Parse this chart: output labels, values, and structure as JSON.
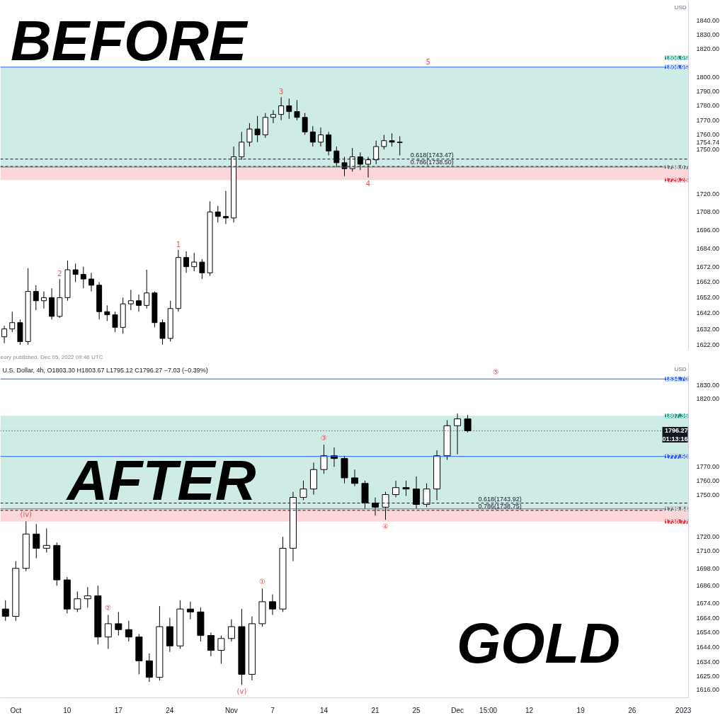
{
  "chart_data": [
    {
      "type": "candlestick",
      "title": "BEFORE",
      "ylabel": "USD",
      "color": "#000000",
      "log": true,
      "tick_labels": "y",
      "categories": [
        null,
        null,
        null,
        null,
        null,
        null,
        null,
        null,
        null,
        null,
        null,
        null,
        null,
        null,
        null,
        null,
        null,
        null,
        null,
        null,
        null,
        null,
        null,
        null,
        null,
        null,
        null,
        null,
        null,
        null,
        null,
        null,
        null,
        null,
        null,
        null,
        null,
        null,
        null,
        null,
        null,
        null,
        null,
        null,
        null,
        null,
        null,
        null,
        null,
        null,
        null,
        null,
        null,
        null,
        null,
        null,
        null,
        null,
        null,
        null,
        null,
        null,
        null,
        null,
        null,
        null,
        null,
        null,
        null,
        null,
        null,
        null,
        null,
        null,
        null,
        null,
        null,
        null,
        null,
        null,
        null,
        null,
        null,
        null,
        null,
        null,
        null
      ],
      "ohlc": [
        [
          1627,
          1634,
          1623,
          1632
        ],
        [
          1632,
          1643,
          1630,
          1636
        ],
        [
          1636,
          1638,
          1622,
          1624
        ],
        [
          1624,
          1671,
          1622,
          1656
        ],
        [
          1656,
          1660,
          1644,
          1650
        ],
        [
          1650,
          1656,
          1645,
          1652
        ],
        [
          1652,
          1658,
          1638,
          1640
        ],
        [
          1640,
          1664,
          1639,
          1652
        ],
        [
          1652,
          1676,
          1650,
          1670
        ],
        [
          1670,
          1674,
          1662,
          1667
        ],
        [
          1667,
          1672,
          1658,
          1664
        ],
        [
          1664,
          1668,
          1656,
          1660
        ],
        [
          1660,
          1662,
          1638,
          1643
        ],
        [
          1643,
          1647,
          1637,
          1641
        ],
        [
          1641,
          1643,
          1630,
          1633
        ],
        [
          1633,
          1652,
          1629,
          1648
        ],
        [
          1648,
          1657,
          1644,
          1650
        ],
        [
          1650,
          1654,
          1643,
          1647
        ],
        [
          1647,
          1670,
          1645,
          1655
        ],
        [
          1655,
          1656,
          1633,
          1636
        ],
        [
          1636,
          1638,
          1622,
          1626
        ],
        [
          1626,
          1650,
          1624,
          1645
        ],
        [
          1645,
          1683,
          1643,
          1678
        ],
        [
          1678,
          1682,
          1668,
          1672
        ],
        [
          1672,
          1681,
          1669,
          1675
        ],
        [
          1675,
          1677,
          1664,
          1668
        ],
        [
          1668,
          1715,
          1666,
          1708
        ],
        [
          1708,
          1712,
          1701,
          1705
        ],
        [
          1705,
          1722,
          1700,
          1704
        ],
        [
          1704,
          1752,
          1701,
          1745
        ],
        [
          1745,
          1762,
          1743,
          1755
        ],
        [
          1755,
          1768,
          1752,
          1764
        ],
        [
          1764,
          1773,
          1755,
          1760
        ],
        [
          1760,
          1775,
          1758,
          1772
        ],
        [
          1772,
          1777,
          1768,
          1774
        ],
        [
          1774,
          1786,
          1770,
          1780
        ],
        [
          1780,
          1785,
          1771,
          1776
        ],
        [
          1776,
          1784,
          1770,
          1772
        ],
        [
          1772,
          1775,
          1760,
          1762
        ],
        [
          1762,
          1766,
          1752,
          1755
        ],
        [
          1755,
          1765,
          1752,
          1760
        ],
        [
          1760,
          1762,
          1746,
          1749
        ],
        [
          1749,
          1752,
          1738,
          1741
        ],
        [
          1741,
          1745,
          1732,
          1737
        ],
        [
          1737,
          1751,
          1735,
          1745
        ],
        [
          1745,
          1748,
          1736,
          1740
        ],
        [
          1740,
          1745,
          1731,
          1743
        ],
        [
          1743,
          1756,
          1740,
          1752
        ],
        [
          1752,
          1760,
          1750,
          1756
        ],
        [
          1756,
          1761,
          1752,
          1755
        ],
        [
          1755,
          1759,
          1746,
          1754.74
        ],
        null,
        null,
        null,
        null,
        null,
        null,
        null,
        null,
        null,
        null,
        null,
        null,
        null,
        null,
        null,
        null,
        null,
        null,
        null,
        null,
        null,
        null,
        null,
        null,
        null,
        null,
        null,
        null,
        null,
        null,
        null,
        null,
        null,
        null,
        null,
        null
      ],
      "ylim": [
        1619.5,
        1853.5
      ],
      "yticks": [
        {
          "value": 1840,
          "label": "1840.00"
        },
        {
          "value": 1830,
          "label": "1830.00"
        },
        {
          "value": 1820,
          "label": "1820.00"
        },
        {
          "value": 1800,
          "label": "1800.00"
        },
        {
          "value": 1790,
          "label": "1790.00"
        },
        {
          "value": 1780,
          "label": "1780.00"
        },
        {
          "value": 1770,
          "label": "1770.00"
        },
        {
          "value": 1760,
          "label": "1760.00"
        },
        {
          "value": 1754.74,
          "label": "1754.74"
        },
        {
          "value": 1750,
          "label": "1750.00"
        },
        {
          "value": 1720,
          "label": "1720.00"
        },
        {
          "value": 1708,
          "label": "1708.00"
        },
        {
          "value": 1696,
          "label": "1696.00"
        },
        {
          "value": 1684,
          "label": "1684.00"
        },
        {
          "value": 1672,
          "label": "1672.00"
        },
        {
          "value": 1662,
          "label": "1662.00"
        },
        {
          "value": 1652,
          "label": "1652.00"
        },
        {
          "value": 1642,
          "label": "1642.00"
        },
        {
          "value": 1632,
          "label": "1632.00"
        },
        {
          "value": 1622,
          "label": "1622.00"
        }
      ],
      "ref_lines": [
        {
          "axis": "y",
          "value": 1806.95,
          "label": "1806.95",
          "color": "#2962ff"
        },
        {
          "axis": "y",
          "value": 1738.07,
          "label": "1738.07",
          "color": "#787b86"
        },
        {
          "axis": "y",
          "value": 1743.47,
          "label": "0.618(1743.47)",
          "color": "#131722",
          "line_style": "dashed"
        },
        {
          "axis": "y",
          "value": 1738.5,
          "label": "0.786(1738.50)",
          "color": "#131722",
          "line_style": "dashed"
        }
      ],
      "bands": [
        {
          "axis": "y",
          "from": 1738.07,
          "to": 1806.95,
          "label": "1806.95",
          "color": "#089981"
        },
        {
          "axis": "y",
          "from": 1738.07,
          "to": 1729.28,
          "label": "1729.28",
          "color": "#f23645"
        }
      ],
      "annotations": [
        "eory published, Dec 05, 2022 09:46 UTC",
        {
          "text": "1",
          "y": 1683
        },
        {
          "text": "2",
          "y": 1664
        },
        {
          "text": "3",
          "y": 1786
        },
        {
          "text": "4",
          "y": 1731
        },
        {
          "text": "5",
          "y": 1806.95
        }
      ]
    },
    {
      "type": "candlestick",
      "title": "AFTER",
      "subtitle": "U.S. Dollar, 4h, O1803.30 H1803.67 L1795.12 C1796.27 −7.03 (−0.39%)",
      "ylabel": "USD",
      "color": "#000000",
      "log": true,
      "categories": [
        null,
        "Oct",
        null,
        null,
        null,
        null,
        "10",
        null,
        null,
        null,
        null,
        "17",
        null,
        null,
        null,
        null,
        "24",
        null,
        null,
        null,
        null,
        null,
        "Nov",
        null,
        null,
        null,
        "7",
        null,
        null,
        null,
        null,
        "14",
        null,
        null,
        null,
        null,
        "21",
        null,
        null,
        null,
        "25",
        null,
        null,
        null,
        "Dec",
        null,
        null,
        "15:00",
        null,
        null,
        null,
        "12",
        null,
        null,
        null,
        null,
        "19",
        null,
        null,
        null,
        null,
        "26",
        null,
        null,
        null,
        null,
        "2023"
      ],
      "ohlc": [
        [
          1670,
          1676,
          1662,
          1665
        ],
        [
          1665,
          1703,
          1662,
          1698
        ],
        [
          1698,
          1731,
          1696,
          1722
        ],
        [
          1722,
          1729,
          1705,
          1712
        ],
        [
          1712,
          1726,
          1709,
          1714
        ],
        [
          1714,
          1716,
          1686,
          1690
        ],
        [
          1690,
          1692,
          1667,
          1670
        ],
        [
          1670,
          1682,
          1668,
          1677
        ],
        [
          1677,
          1685,
          1671,
          1679
        ],
        [
          1679,
          1686,
          1646,
          1651
        ],
        [
          1651,
          1666,
          1643,
          1660
        ],
        [
          1660,
          1668,
          1652,
          1656
        ],
        [
          1656,
          1662,
          1648,
          1651
        ],
        [
          1651,
          1653,
          1626,
          1635
        ],
        [
          1635,
          1640,
          1621,
          1624
        ],
        [
          1624,
          1672,
          1622,
          1658
        ],
        [
          1658,
          1664,
          1641,
          1645
        ],
        [
          1645,
          1676,
          1643,
          1670
        ],
        [
          1670,
          1675,
          1663,
          1668
        ],
        [
          1668,
          1671,
          1648,
          1652
        ],
        [
          1652,
          1654,
          1638,
          1642
        ],
        [
          1642,
          1652,
          1633,
          1650
        ],
        [
          1650,
          1663,
          1648,
          1658
        ],
        [
          1658,
          1670,
          1619,
          1626
        ],
        [
          1626,
          1665,
          1622,
          1660
        ],
        [
          1660,
          1684,
          1658,
          1675
        ],
        [
          1675,
          1680,
          1666,
          1670
        ],
        [
          1670,
          1720,
          1668,
          1712
        ],
        [
          1712,
          1752,
          1703,
          1748
        ],
        [
          1748,
          1760,
          1746,
          1754
        ],
        [
          1754,
          1773,
          1750,
          1768
        ],
        [
          1768,
          1786,
          1765,
          1778
        ],
        [
          1778,
          1784,
          1770,
          1776
        ],
        [
          1776,
          1778,
          1758,
          1762
        ],
        [
          1762,
          1768,
          1756,
          1758
        ],
        [
          1758,
          1760,
          1740,
          1744
        ],
        [
          1744,
          1748,
          1735,
          1741
        ],
        [
          1741,
          1752,
          1732,
          1750
        ],
        [
          1750,
          1760,
          1748,
          1755
        ],
        [
          1755,
          1760,
          1749,
          1754
        ],
        [
          1754,
          1763,
          1740,
          1743
        ],
        [
          1743,
          1758,
          1741,
          1754
        ],
        [
          1754,
          1782,
          1746,
          1778
        ],
        [
          1778,
          1804,
          1775,
          1800
        ],
        [
          1800,
          1809,
          1779,
          1805
        ],
        [
          1805,
          1808,
          1795,
          1796.27
        ],
        null,
        null,
        null,
        null,
        null,
        null,
        null,
        null,
        null,
        null,
        null,
        null,
        null,
        null,
        null,
        null,
        null,
        null,
        null,
        null,
        null
      ],
      "ylim": [
        1610.5,
        1846.3
      ],
      "yticks": [
        {
          "value": 1830,
          "label": "1830.00"
        },
        {
          "value": 1820,
          "label": "1820.00"
        },
        {
          "value": 1770,
          "label": "1770.00"
        },
        {
          "value": 1760,
          "label": "1760.00"
        },
        {
          "value": 1750,
          "label": "1750.00"
        },
        {
          "value": 1720,
          "label": "1720.00"
        },
        {
          "value": 1710,
          "label": "1710.00"
        },
        {
          "value": 1698,
          "label": "1698.00"
        },
        {
          "value": 1686,
          "label": "1686.00"
        },
        {
          "value": 1674,
          "label": "1674.00"
        },
        {
          "value": 1664,
          "label": "1664.00"
        },
        {
          "value": 1654,
          "label": "1654.00"
        },
        {
          "value": 1644,
          "label": "1644.00"
        },
        {
          "value": 1634,
          "label": "1634.00"
        },
        {
          "value": 1625,
          "label": "1625.00"
        },
        {
          "value": 1616,
          "label": "1616.00"
        }
      ],
      "ref_lines": [
        {
          "axis": "y",
          "value": 1834.7,
          "label": "1834.70",
          "color": "#2962ff"
        },
        {
          "axis": "y",
          "value": 1777.5,
          "label": "1777.50",
          "color": "#2962ff"
        },
        {
          "axis": "y",
          "value": 1796.27,
          "label": "1796.27\n01:13:16",
          "color": "#131722",
          "line_style": "dotted"
        },
        {
          "axis": "y",
          "value": 1739.84,
          "label": "1739.84",
          "color": "#787b86"
        },
        {
          "axis": "y",
          "value": 1743.92,
          "label": "0.618(1743.92)",
          "color": "#131722",
          "line_style": "dashed"
        },
        {
          "axis": "y",
          "value": 1738.75,
          "label": "0.786(1738.75)",
          "color": "#131722",
          "line_style": "dashed"
        }
      ],
      "bands": [
        {
          "axis": "y",
          "from": 1739.84,
          "to": 1807.36,
          "label": "1807.36",
          "color": "#089981"
        },
        {
          "axis": "y",
          "from": 1739.84,
          "to": 1730.77,
          "label": "1730.77",
          "color": "#f23645"
        }
      ],
      "annotations": [
        "GOLD",
        {
          "text": "(iv)",
          "y": 1731
        },
        {
          "text": "(v)",
          "y": 1619
        },
        {
          "text": "①",
          "y": 1684
        },
        {
          "text": "②",
          "y": 1666
        },
        {
          "text": "③",
          "y": 1786
        },
        {
          "text": "④",
          "y": 1732
        },
        {
          "text": "⑤",
          "y": 1834.7
        }
      ]
    }
  ]
}
